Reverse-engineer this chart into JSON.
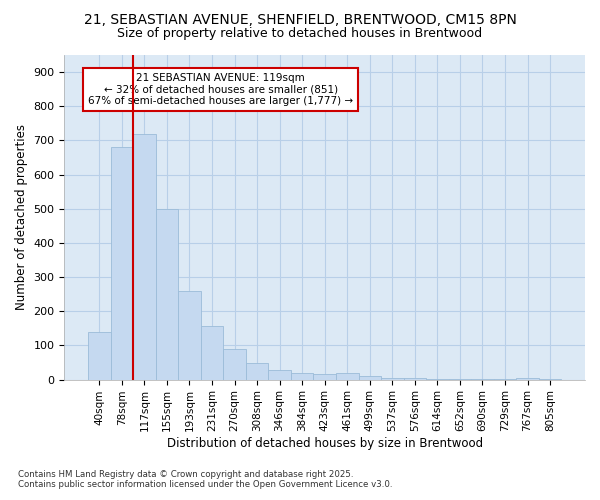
{
  "title1": "21, SEBASTIAN AVENUE, SHENFIELD, BRENTWOOD, CM15 8PN",
  "title2": "Size of property relative to detached houses in Brentwood",
  "xlabel": "Distribution of detached houses by size in Brentwood",
  "ylabel": "Number of detached properties",
  "categories": [
    "40sqm",
    "78sqm",
    "117sqm",
    "155sqm",
    "193sqm",
    "231sqm",
    "270sqm",
    "308sqm",
    "346sqm",
    "384sqm",
    "423sqm",
    "461sqm",
    "499sqm",
    "537sqm",
    "576sqm",
    "614sqm",
    "652sqm",
    "690sqm",
    "729sqm",
    "767sqm",
    "805sqm"
  ],
  "values": [
    140,
    680,
    720,
    500,
    258,
    158,
    90,
    50,
    28,
    20,
    15,
    20,
    10,
    5,
    5,
    3,
    1,
    1,
    1,
    5,
    1
  ],
  "bar_color": "#c5d9f0",
  "bar_edge_color": "#9bbcd8",
  "property_index": 2,
  "vline_color": "#cc0000",
  "annotation_text": "21 SEBASTIAN AVENUE: 119sqm\n← 32% of detached houses are smaller (851)\n67% of semi-detached houses are larger (1,777) →",
  "annotation_box_color": "#cc0000",
  "ylim": [
    0,
    950
  ],
  "yticks": [
    0,
    100,
    200,
    300,
    400,
    500,
    600,
    700,
    800,
    900
  ],
  "grid_color": "#b8cfe8",
  "background_color": "#dce9f5",
  "fig_background": "#ffffff",
  "footer1": "Contains HM Land Registry data © Crown copyright and database right 2025.",
  "footer2": "Contains public sector information licensed under the Open Government Licence v3.0.",
  "title1_fontsize": 10,
  "title2_fontsize": 9
}
